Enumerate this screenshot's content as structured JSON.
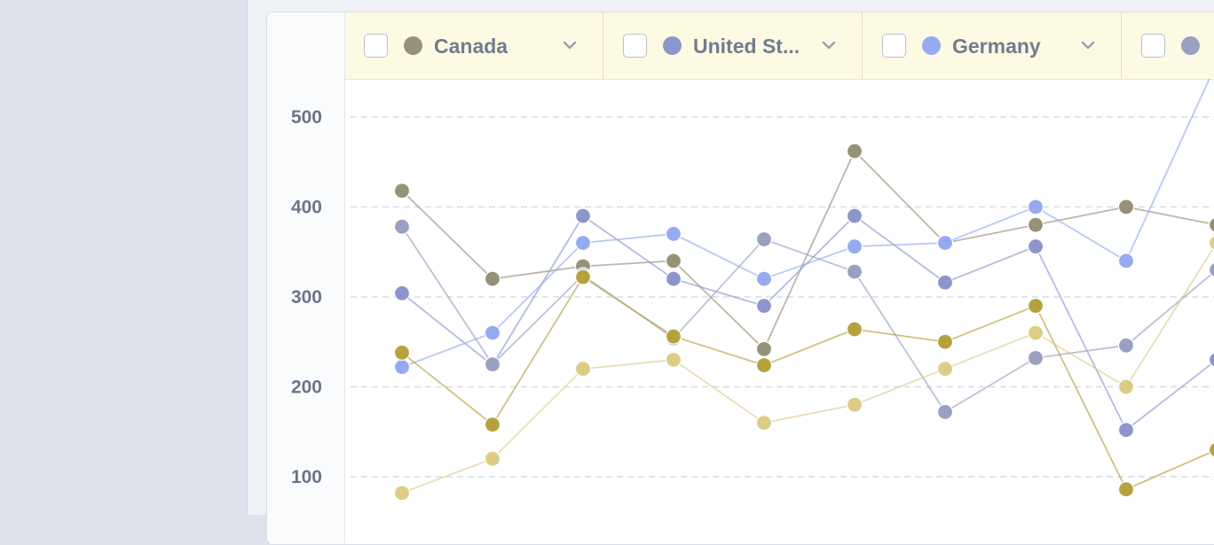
{
  "chart_data": {
    "type": "line",
    "title": "",
    "xlabel": "",
    "ylabel": "",
    "ylim": [
      50,
      550
    ],
    "yticks": [
      100,
      200,
      300,
      400,
      500
    ],
    "grid": "horizontal-dashed",
    "legend_placement": "top",
    "x": [
      1,
      2,
      3,
      4,
      5,
      6,
      7,
      8,
      9,
      10
    ],
    "legend": [
      {
        "label": "Canada",
        "color": "#969278"
      },
      {
        "label": "United St...",
        "color": "#8c96cc"
      },
      {
        "label": "Germany",
        "color": "#95aaf0"
      },
      {
        "label": "",
        "color": "#9aa0c0"
      }
    ],
    "series": [
      {
        "color": "#969278",
        "values": [
          418,
          320,
          334,
          340,
          242,
          462,
          360,
          380,
          400,
          380
        ]
      },
      {
        "color": "#8c96cc",
        "values": [
          304,
          224,
          390,
          320,
          290,
          390,
          316,
          356,
          152,
          230
        ]
      },
      {
        "color": "#95aaf0",
        "values": [
          222,
          260,
          360,
          370,
          320,
          356,
          360,
          400,
          340,
          560
        ]
      },
      {
        "color": "#9aa0c0",
        "values": [
          378,
          225,
          324,
          254,
          364,
          328,
          172,
          232,
          246,
          330
        ]
      },
      {
        "color": "#b5a23e",
        "values": [
          238,
          158,
          322,
          256,
          224,
          264,
          250,
          290,
          86,
          130
        ]
      },
      {
        "color": "#dccd86",
        "values": [
          82,
          120,
          220,
          230,
          160,
          180,
          220,
          260,
          200,
          360
        ]
      }
    ]
  }
}
